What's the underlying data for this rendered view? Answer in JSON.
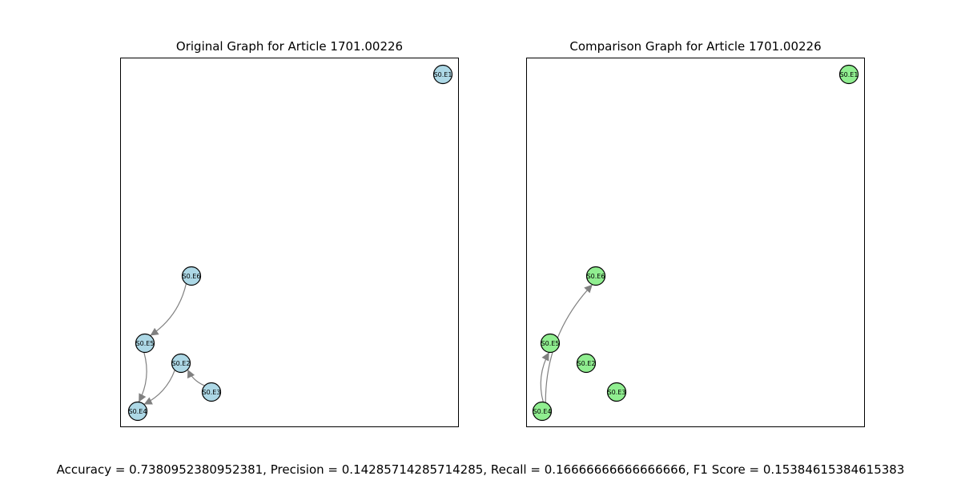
{
  "colors": {
    "original_fill": "#add8e6",
    "comparison_fill": "#90ee90",
    "edge": "#808080",
    "node_stroke": "#000000"
  },
  "left": {
    "title": "Original Graph for Article 1701.00226",
    "nodes": [
      "S0.E1",
      "S0.E6",
      "S0.E5",
      "S0.E2",
      "S0.E3",
      "S0.E4"
    ],
    "edges": [
      [
        "S0.E6",
        "S0.E5"
      ],
      [
        "S0.E5",
        "S0.E4"
      ],
      [
        "S0.E2",
        "S0.E4"
      ],
      [
        "S0.E3",
        "S0.E2"
      ]
    ]
  },
  "right": {
    "title": "Comparison Graph for Article 1701.00226",
    "nodes": [
      "S0.E1",
      "S0.E6",
      "S0.E5",
      "S0.E2",
      "S0.E3",
      "S0.E4"
    ],
    "edges": [
      [
        "S0.E4",
        "S0.E5"
      ],
      [
        "S0.E4",
        "S0.E6"
      ]
    ]
  },
  "metrics": "Accuracy = 0.7380952380952381, Precision = 0.14285714285714285, Recall = 0.16666666666666666, F1 Score = 0.15384615384615383"
}
